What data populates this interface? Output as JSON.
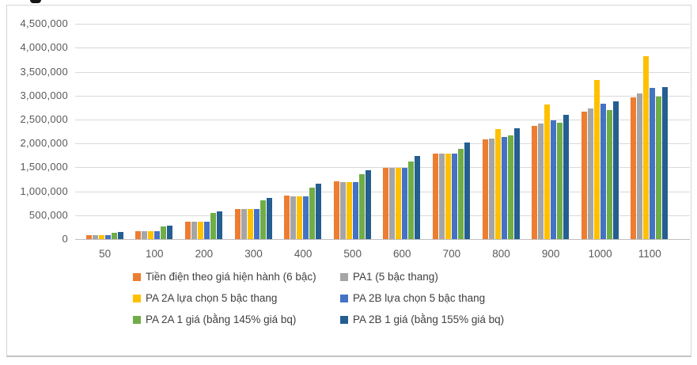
{
  "page": {
    "background_color": "#ffffff",
    "frame_border_color": "#d6d6d6",
    "cropped_text_fragment": "partial glyph of text cropped above chart"
  },
  "chart_data": {
    "type": "bar",
    "title": "",
    "xlabel": "",
    "ylabel": "",
    "grid": true,
    "legend_position": "bottom",
    "gridline_color": "#d9d9d9",
    "axis_text_color": "#595959",
    "categories": [
      "50",
      "100",
      "200",
      "300",
      "400",
      "500",
      "600",
      "700",
      "800",
      "900",
      "1000",
      "1100"
    ],
    "y_axis": {
      "min": 0,
      "max": 4500000,
      "step": 500000,
      "tick_labels": [
        "0",
        "500,000",
        "1,000,000",
        "1,500,000",
        "2,000,000",
        "2,500,000",
        "3,000,000",
        "3,500,000",
        "4,000,000",
        "4,500,000"
      ]
    },
    "series": [
      {
        "name": "Tiền điện theo giá hiện hành (6 bậc)",
        "color": "#ED7D31",
        "values": [
          83900,
          170600,
          372000,
          625600,
          909000,
          1201700,
          1494400,
          1787100,
          2079800,
          2372500,
          2665200,
          2957900
        ]
      },
      {
        "name": "PA1 (5 bậc thang)",
        "color": "#A5A5A5",
        "values": [
          83900,
          167800,
          369200,
          632100,
          895000,
          1193300,
          1491600,
          1789900,
          2103100,
          2416300,
          2729500,
          3042700
        ]
      },
      {
        "name": "PA 2A lựa chọn 5 bậc thang",
        "color": "#FFC000",
        "values": [
          83900,
          167800,
          369200,
          632100,
          895000,
          1193300,
          1491600,
          1789900,
          2300800,
          2811700,
          3322600,
          3833400
        ]
      },
      {
        "name": "PA 2B lựa chọn 5 bậc thang",
        "color": "#4472C4",
        "values": [
          83900,
          167800,
          369200,
          632100,
          895000,
          1193300,
          1491600,
          1789900,
          2134800,
          2479700,
          2824600,
          3169500
        ]
      },
      {
        "name": "PA 2A 1 giá (bằng 145% giá bq)",
        "color": "#70AD47",
        "values": [
          135200,
          270300,
          540700,
          811000,
          1081400,
          1351700,
          1622100,
          1892400,
          2162700,
          2433100,
          2703400,
          2973800
        ]
      },
      {
        "name": "PA 2B 1 giá (bằng 155% giá bq)",
        "color": "#255E91",
        "values": [
          144500,
          289000,
          578000,
          867000,
          1156000,
          1445000,
          1733900,
          2022900,
          2311900,
          2600900,
          2889900,
          3178900
        ]
      }
    ]
  }
}
